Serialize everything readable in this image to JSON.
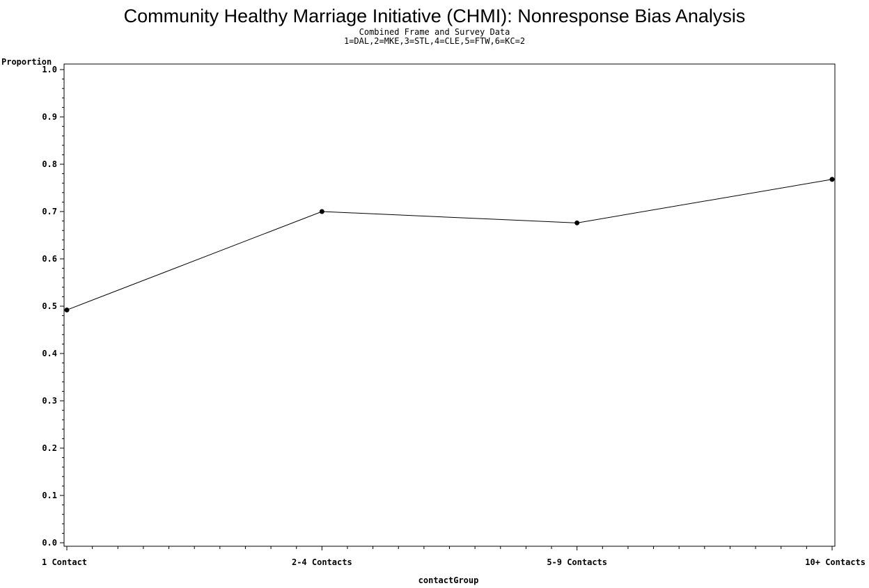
{
  "chart_data": {
    "type": "line",
    "title": "Community Healthy Marriage Initiative (CHMI): Nonresponse Bias Analysis",
    "subtitle_lines": [
      "Combined Frame and Survey Data",
      "1=DAL,2=MKE,3=STL,4=CLE,5=FTW,6=KC=2"
    ],
    "ylabel": "Proportion",
    "xlabel": "contactGroup",
    "ylim": [
      0.0,
      1.0
    ],
    "y_ticks": [
      "0.0",
      "0.1",
      "0.2",
      "0.3",
      "0.4",
      "0.5",
      "0.6",
      "0.7",
      "0.8",
      "0.9",
      "1.0"
    ],
    "categories": [
      "1 Contact",
      "2-4 Contacts",
      "5-9 Contacts",
      "10+ Contacts"
    ],
    "values": [
      0.492,
      0.7,
      0.676,
      0.768
    ],
    "grid": false,
    "line_color": "#000000",
    "marker_color": "#000000"
  }
}
